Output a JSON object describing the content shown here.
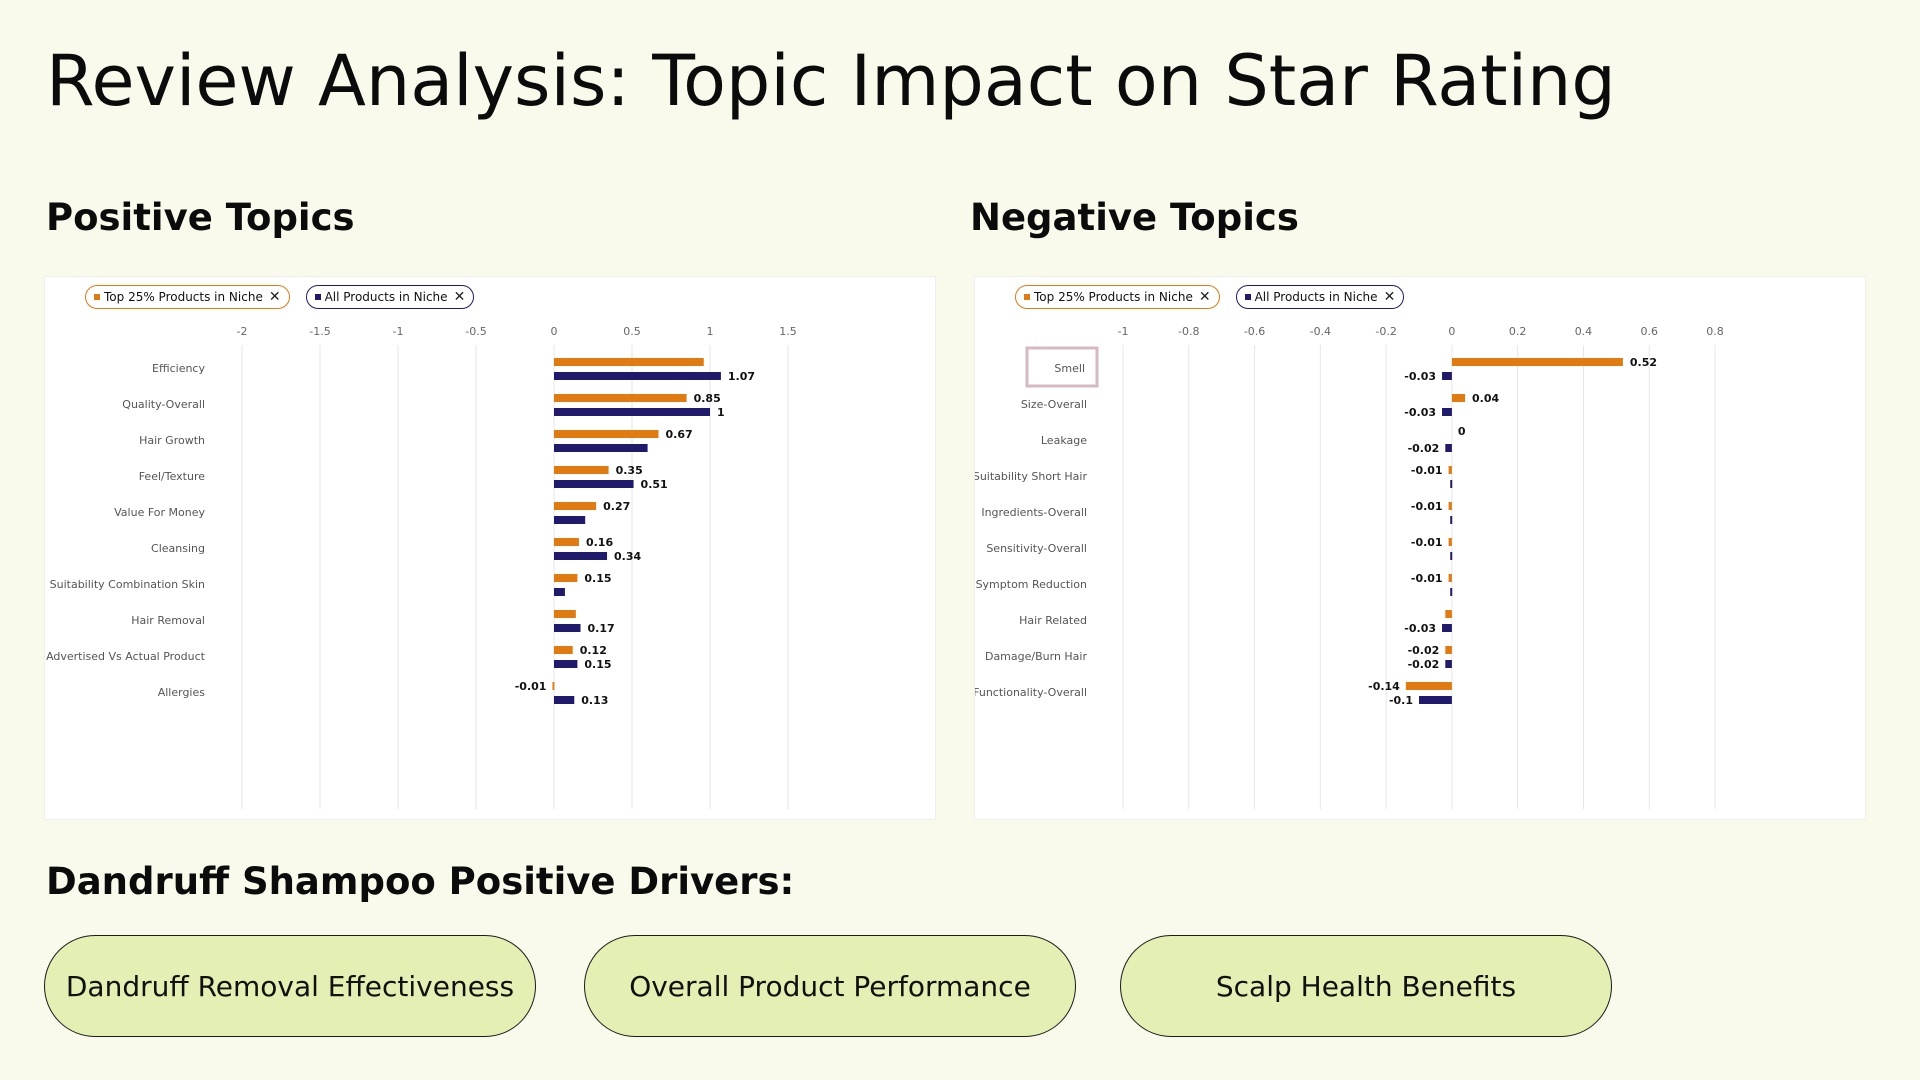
{
  "title": "Review Analysis: Topic Impact on Star Rating",
  "positive_heading": "Positive Topics",
  "negative_heading": "Negative Topics",
  "drivers_heading": "Dandruff Shampoo Positive Drivers:",
  "drivers": [
    "Dandruff Removal Effectiveness",
    "Overall Product Performance",
    "Scalp Health Benefits"
  ],
  "colors": {
    "top25": "#e07b12",
    "all": "#1f1a6b",
    "pill_bg": "#e4efb4",
    "page_bg": "#fafaec",
    "highlight": "#d7b9c6"
  },
  "legend": {
    "top25_label": "Top 25% Products in Niche",
    "all_label": "All Products in Niche",
    "close_icon": "close-icon"
  },
  "chart_data": [
    {
      "type": "bar",
      "orientation": "horizontal",
      "title": "Positive Topics",
      "xlim": [
        -2,
        1.5
      ],
      "xticks": [
        "-2",
        "-1.5",
        "-1",
        "-0.5",
        "0",
        "0.5",
        "1",
        "1.5"
      ],
      "grid": true,
      "legend_placement": "top-left",
      "categories": [
        "Efficiency",
        "Quality-Overall",
        "Hair Growth",
        "Feel/Texture",
        "Value For Money",
        "Cleansing",
        "Suitability Combination Skin",
        "Hair Removal",
        "Advertised Vs Actual Product",
        "Allergies"
      ],
      "series": [
        {
          "name": "Top 25% Products in Niche",
          "values": [
            0.96,
            0.85,
            0.67,
            0.35,
            0.27,
            0.16,
            0.15,
            0.14,
            0.12,
            -0.01
          ],
          "labels": [
            "",
            "0.85",
            "0.67",
            "0.35",
            "0.27",
            "0.16",
            "0.15",
            "",
            "0.12",
            "-0.01"
          ]
        },
        {
          "name": "All Products in Niche",
          "values": [
            1.07,
            1,
            0.6,
            0.51,
            0.2,
            0.34,
            0.07,
            0.17,
            0.15,
            0.13
          ],
          "labels": [
            "1.07",
            "1",
            "",
            "0.51",
            "",
            "0.34",
            "",
            "0.17",
            "0.15",
            "0.13"
          ]
        }
      ]
    },
    {
      "type": "bar",
      "orientation": "horizontal",
      "title": "Negative Topics",
      "xlim": [
        -1,
        0.8
      ],
      "xticks": [
        "-1",
        "-0.8",
        "-0.6",
        "-0.4",
        "-0.2",
        "0",
        "0.2",
        "0.4",
        "0.6",
        "0.8"
      ],
      "grid": true,
      "legend_placement": "top-left",
      "highlighted_category": "Smell",
      "categories": [
        "Smell",
        "Size-Overall",
        "Leakage",
        "Suitability Short Hair",
        "Ingredients-Overall",
        "Sensitivity-Overall",
        "Symptom Reduction",
        "Hair Related",
        "Damage/Burn Hair",
        "Functionality-Overall"
      ],
      "series": [
        {
          "name": "Top 25% Products in Niche",
          "values": [
            0.52,
            0.04,
            0,
            -0.01,
            -0.01,
            -0.01,
            -0.01,
            -0.02,
            -0.02,
            -0.14
          ],
          "labels": [
            "0.52",
            "0.04",
            "0",
            "-0.01",
            "-0.01",
            "-0.01",
            "-0.01",
            "",
            "-0.02",
            "-0.14"
          ]
        },
        {
          "name": "All Products in Niche",
          "values": [
            -0.03,
            -0.03,
            -0.02,
            -0.005,
            -0.005,
            -0.005,
            -0.005,
            -0.03,
            -0.02,
            -0.1
          ],
          "labels": [
            "-0.03",
            "-0.03",
            "-0.02",
            "",
            "",
            "",
            "",
            "-0.03",
            "-0.02",
            "-0.1"
          ]
        }
      ]
    }
  ]
}
